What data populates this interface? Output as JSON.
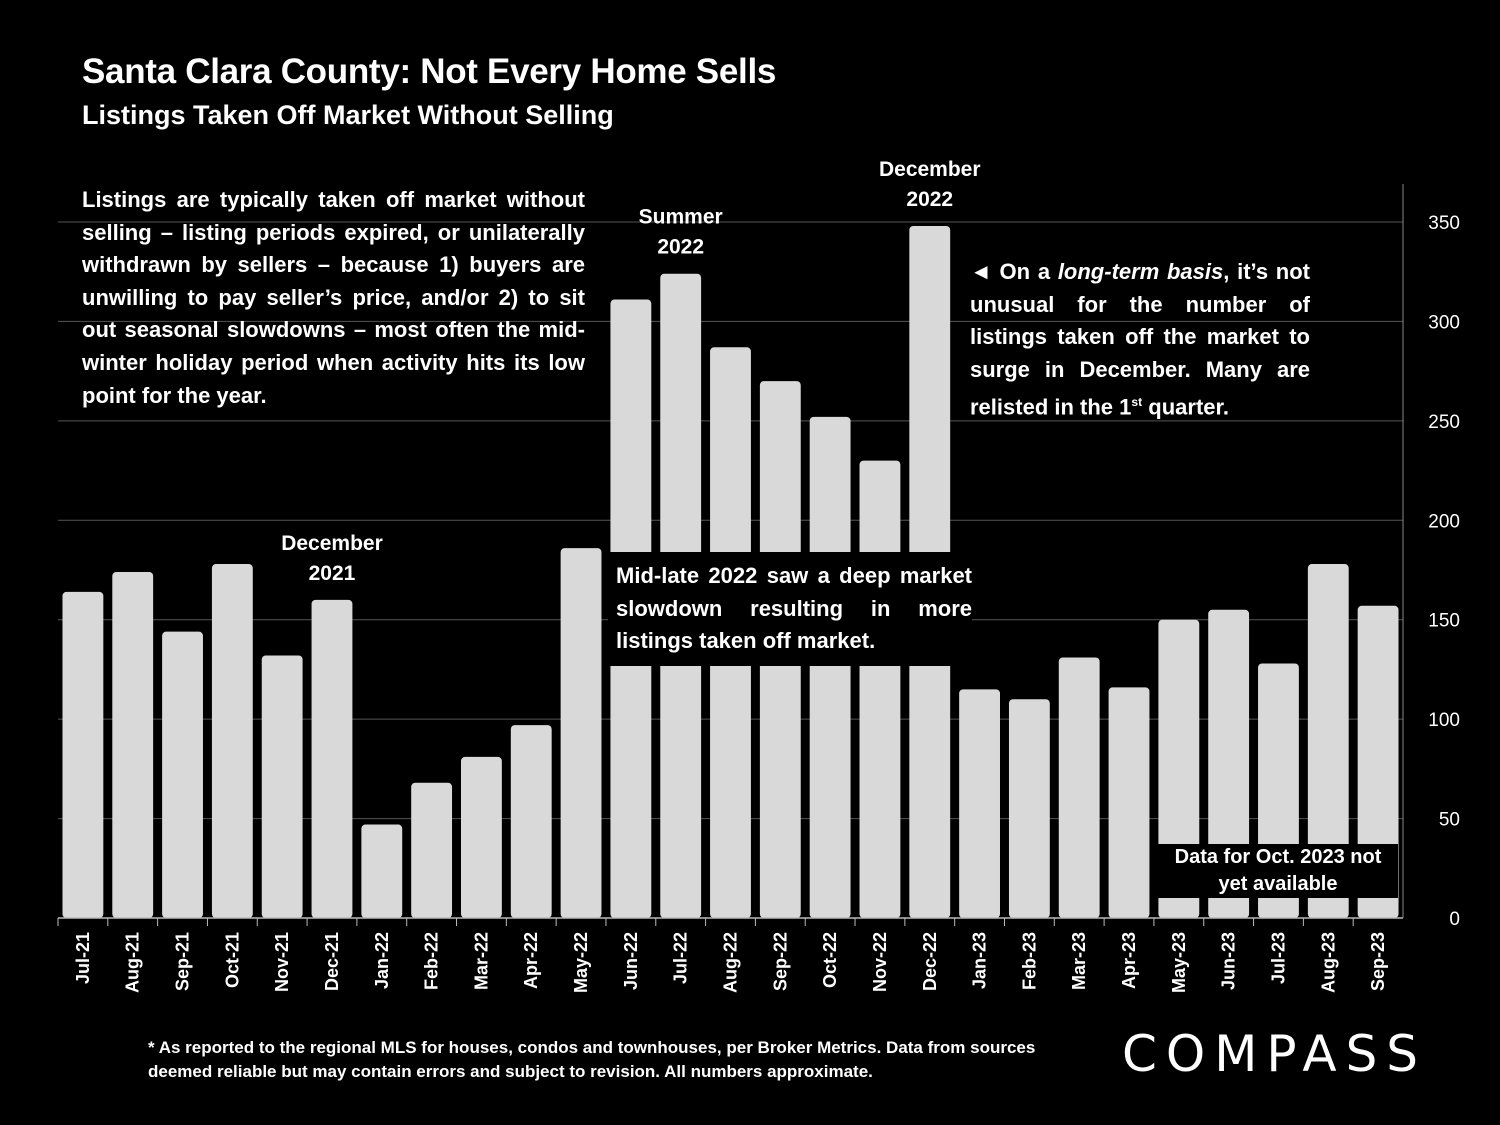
{
  "header": {
    "title": "Santa Clara County: Not Every Home Sells",
    "subtitle": "Listings Taken Off Market Without Selling"
  },
  "notes": {
    "left": "Listings are typically taken off market without selling – listing periods expired, or unilaterally withdrawn by sellers – because 1) buyers are unwilling to pay seller’s price, and/or 2) to sit out seasonal slowdowns – most often the mid-winter holiday period when activity hits its low point for the year.",
    "right_arrow": "◄",
    "right_a": "On a",
    "right_em": "long-term basis",
    "right_b": ", it’s not unusual for the number of listings taken off the market to surge in December. Many are relisted in the 1",
    "right_sup": "st",
    "right_c": " quarter.",
    "middle": "Mid-late 2022 saw a deep market slowdown resulting in more listings taken off market.",
    "not_available": "Data for Oct. 2023 not yet available"
  },
  "footnote": "* As reported to the regional MLS for houses, condos and townhouses, per Broker Metrics. Data from sources deemed reliable but may contain errors and subject to revision. All numbers approximate.",
  "logo": "COMPASS",
  "chart_data": {
    "type": "bar",
    "title": "Santa Clara County: Not Every Home Sells",
    "subtitle": "Listings Taken Off Market Without Selling",
    "xlabel": "",
    "ylabel": "",
    "ylim": [
      0,
      350
    ],
    "yticks": [
      0,
      50,
      100,
      150,
      200,
      250,
      300,
      350
    ],
    "grid": true,
    "y_axis_side": "right",
    "categories": [
      "Jul-21",
      "Aug-21",
      "Sep-21",
      "Oct-21",
      "Nov-21",
      "Dec-21",
      "Jan-22",
      "Feb-22",
      "Mar-22",
      "Apr-22",
      "May-22",
      "Jun-22",
      "Jul-22",
      "Aug-22",
      "Sep-22",
      "Oct-22",
      "Nov-22",
      "Dec-22",
      "Jan-23",
      "Feb-23",
      "Mar-23",
      "Apr-23",
      "May-23",
      "Jun-23",
      "Jul-23",
      "Aug-23",
      "Sep-23"
    ],
    "values": [
      164,
      174,
      144,
      178,
      132,
      160,
      47,
      68,
      81,
      97,
      186,
      311,
      324,
      287,
      270,
      252,
      230,
      348,
      115,
      110,
      131,
      116,
      150,
      155,
      128,
      178,
      157
    ],
    "bar_color": "#d9d9d9",
    "annotations": [
      {
        "text": "December 2021",
        "category": "Dec-21"
      },
      {
        "text": "Summer 2022",
        "category": "Jul-22"
      },
      {
        "text": "December 2022",
        "category": "Dec-22"
      }
    ]
  }
}
